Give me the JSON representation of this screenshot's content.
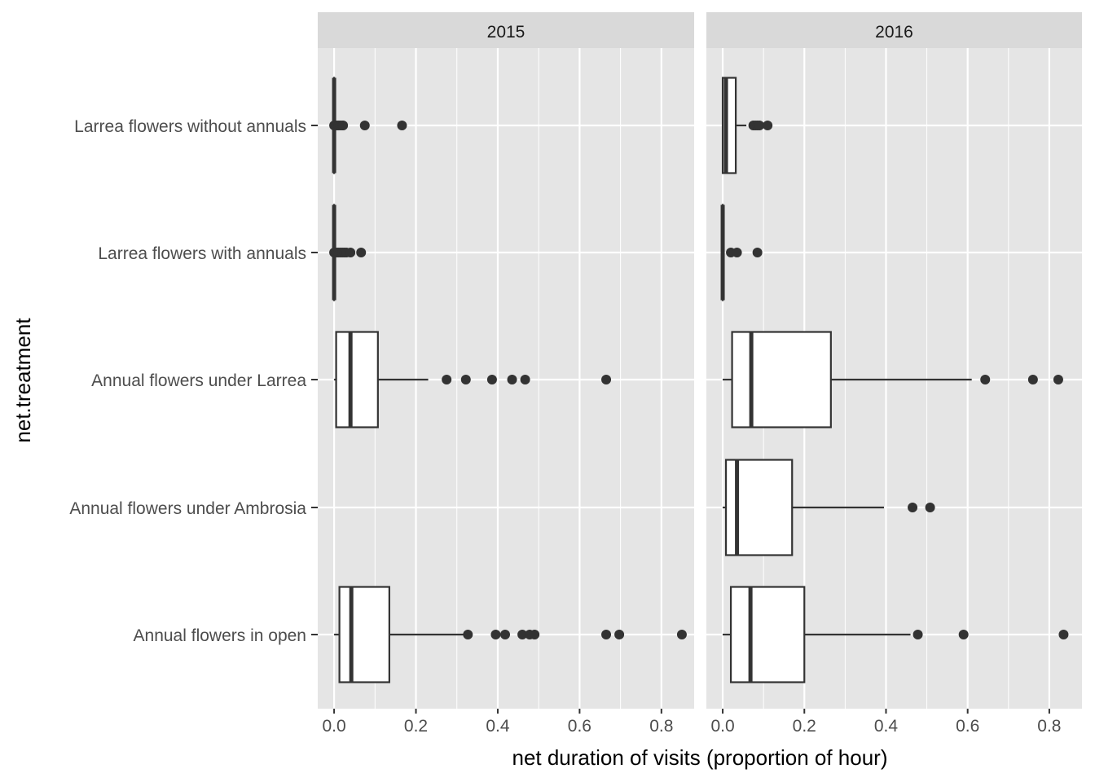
{
  "chart_data": {
    "type": "boxplot",
    "orientation": "horizontal",
    "xlabel": "net duration of visits (proportion of hour)",
    "ylabel": "net.treatment",
    "xlim": [
      -0.04,
      0.88
    ],
    "x_ticks": [
      0.0,
      0.2,
      0.4,
      0.6,
      0.8
    ],
    "x_tick_labels": [
      "0.0",
      "0.2",
      "0.4",
      "0.6",
      "0.8"
    ],
    "categories": [
      "Larrea flowers without annuals",
      "Larrea flowers with annuals",
      "Annual flowers under Larrea",
      "Annual flowers under Ambrosia",
      "Annual flowers in open"
    ],
    "grid": true,
    "panel_background": "#e5e5e5",
    "strip_background": "#d9d9d9",
    "grid_color": "#ffffff",
    "box_fill": "#ffffff",
    "box_stroke": "#333333",
    "outlier_color": "#333333",
    "facets": [
      {
        "strip": "2015",
        "boxes": [
          {
            "category": "Larrea flowers without annuals",
            "min": 0.0,
            "q1": 0.0,
            "median": 0.0,
            "q3": 0.0,
            "max": 0.0,
            "outliers": [
              0.0,
              0.005,
              0.01,
              0.015,
              0.02,
              0.022,
              0.075,
              0.166
            ]
          },
          {
            "category": "Larrea flowers with annuals",
            "min": 0.0,
            "q1": 0.0,
            "median": 0.0,
            "q3": 0.0,
            "max": 0.0,
            "outliers": [
              0.0,
              0.005,
              0.01,
              0.015,
              0.02,
              0.025,
              0.03,
              0.04,
              0.066
            ]
          },
          {
            "category": "Annual flowers under Larrea",
            "min": 0.0,
            "q1": 0.005,
            "median": 0.04,
            "q3": 0.107,
            "max": 0.23,
            "outliers": [
              0.275,
              0.322,
              0.386,
              0.435,
              0.467,
              0.665
            ]
          },
          {
            "category": "Annual flowers under Ambrosia",
            "min": null,
            "q1": null,
            "median": null,
            "q3": null,
            "max": null,
            "outliers": []
          },
          {
            "category": "Annual flowers in open",
            "min": 0.0,
            "q1": 0.013,
            "median": 0.042,
            "q3": 0.135,
            "max": 0.32,
            "outliers": [
              0.327,
              0.395,
              0.418,
              0.46,
              0.478,
              0.49,
              0.665,
              0.697,
              0.85
            ]
          }
        ]
      },
      {
        "strip": "2016",
        "boxes": [
          {
            "category": "Larrea flowers without annuals",
            "min": 0.0,
            "q1": 0.0,
            "median": 0.008,
            "q3": 0.032,
            "max": 0.058,
            "outliers": [
              0.075,
              0.08,
              0.085,
              0.09,
              0.11
            ]
          },
          {
            "category": "Larrea flowers with annuals",
            "min": 0.0,
            "q1": 0.0,
            "median": 0.0,
            "q3": 0.0,
            "max": 0.0,
            "outliers": [
              0.02,
              0.035,
              0.085
            ]
          },
          {
            "category": "Annual flowers under Larrea",
            "min": 0.0,
            "q1": 0.023,
            "median": 0.07,
            "q3": 0.265,
            "max": 0.61,
            "outliers": [
              0.643,
              0.76,
              0.822
            ]
          },
          {
            "category": "Annual flowers under Ambrosia",
            "min": 0.0,
            "q1": 0.008,
            "median": 0.035,
            "q3": 0.17,
            "max": 0.395,
            "outliers": [
              0.465,
              0.508
            ]
          },
          {
            "category": "Annual flowers in open",
            "min": 0.0,
            "q1": 0.02,
            "median": 0.068,
            "q3": 0.2,
            "max": 0.46,
            "outliers": [
              0.478,
              0.59,
              0.835
            ]
          }
        ]
      }
    ]
  }
}
